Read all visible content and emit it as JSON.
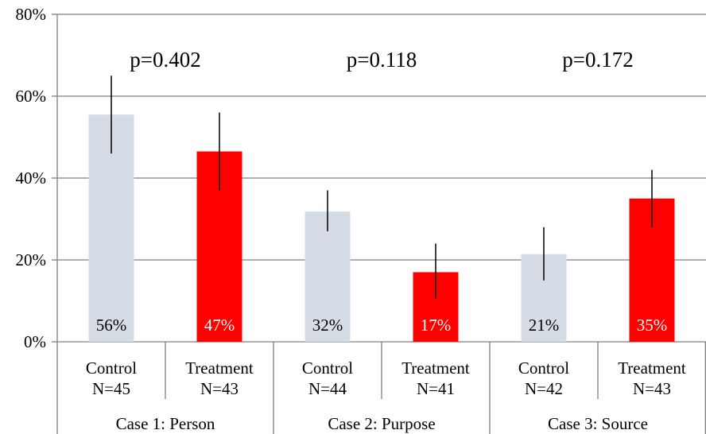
{
  "chart_data": {
    "type": "bar",
    "ylim": [
      0,
      80
    ],
    "yticks": [
      0,
      20,
      40,
      60,
      80
    ],
    "ytick_labels": [
      "0%",
      "20%",
      "40%",
      "60%",
      "80%"
    ],
    "grid": true,
    "colors": {
      "control": "#d5dce6",
      "treatment": "#ff0000",
      "grid": "#7f7f7f"
    },
    "bars": [
      {
        "group": "Case 1: Person",
        "label": "Control",
        "n": "N=45",
        "value": 55.5,
        "err_low": 46,
        "err_high": 65,
        "data_label": "56%",
        "color": "#d5dce6",
        "label_color": "#000000"
      },
      {
        "group": "Case 1: Person",
        "label": "Treatment",
        "n": "N=43",
        "value": 46.5,
        "err_low": 37,
        "err_high": 56,
        "data_label": "47%",
        "color": "#ff0000",
        "label_color": "#ffffff"
      },
      {
        "group": "Case 2: Purpose",
        "label": "Control",
        "n": "N=44",
        "value": 31.8,
        "err_low": 27,
        "err_high": 37,
        "data_label": "32%",
        "color": "#d5dce6",
        "label_color": "#000000"
      },
      {
        "group": "Case 2: Purpose",
        "label": "Treatment",
        "n": "N=41",
        "value": 17.0,
        "err_low": 10.5,
        "err_high": 24,
        "data_label": "17%",
        "color": "#ff0000",
        "label_color": "#ffffff"
      },
      {
        "group": "Case 3: Source",
        "label": "Control",
        "n": "N=42",
        "value": 21.4,
        "err_low": 15,
        "err_high": 28,
        "data_label": "21%",
        "color": "#d5dce6",
        "label_color": "#000000"
      },
      {
        "group": "Case 3: Source",
        "label": "Treatment",
        "n": "N=43",
        "value": 35.0,
        "err_low": 28,
        "err_high": 42,
        "data_label": "35%",
        "color": "#ff0000",
        "label_color": "#ffffff"
      }
    ],
    "groups": [
      {
        "label": "Case 1: Person",
        "pvalue": "p=0.402"
      },
      {
        "label": "Case 2: Purpose",
        "pvalue": "p=0.118"
      },
      {
        "label": "Case 3: Source",
        "pvalue": "p=0.172"
      }
    ]
  }
}
